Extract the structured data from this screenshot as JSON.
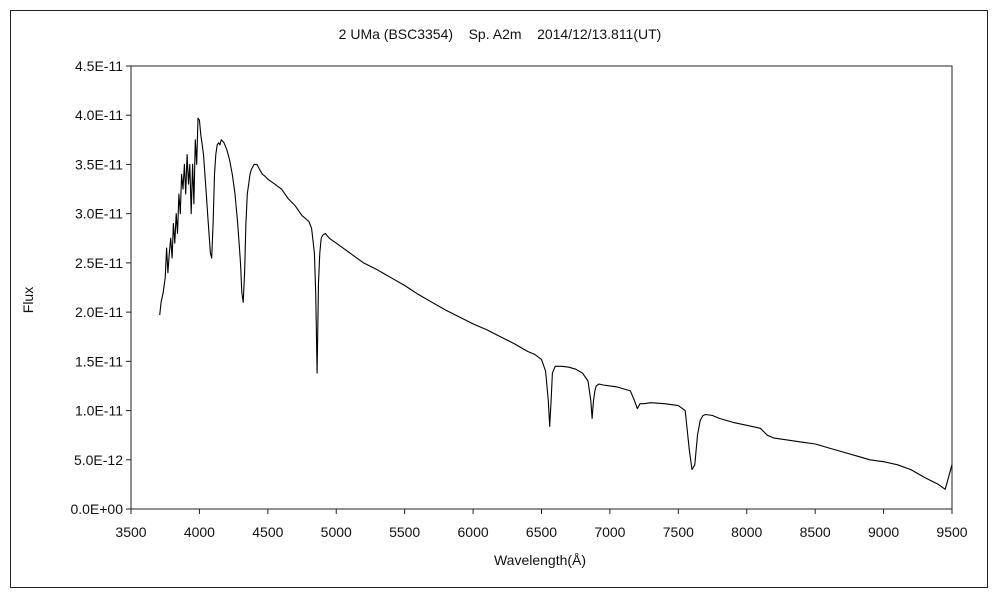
{
  "chart_data": {
    "type": "line",
    "title": "2 UMa (BSC3354)    Sp. A2m    2014/12/13.811(UT)",
    "xlabel": "Wavelength(Å)",
    "ylabel": "Flux",
    "xlim": [
      3500,
      9500
    ],
    "ylim": [
      0,
      4.5e-11
    ],
    "xticks": [
      3500,
      4000,
      4500,
      5000,
      5500,
      6000,
      6500,
      7000,
      7500,
      8000,
      8500,
      9000,
      9500
    ],
    "xtick_labels": [
      "3500",
      "4000",
      "4500",
      "5000",
      "5500",
      "6000",
      "6500",
      "7000",
      "7500",
      "8000",
      "8500",
      "9000",
      "9500"
    ],
    "yticks": [
      0,
      5e-12,
      1e-11,
      1.5e-11,
      2e-11,
      2.5e-11,
      3e-11,
      3.5e-11,
      4e-11,
      4.5e-11
    ],
    "ytick_labels": [
      "0.0E+00",
      "5.0E-12",
      "1.0E-11",
      "1.5E-11",
      "2.0E-11",
      "2.5E-11",
      "3.0E-11",
      "3.5E-11",
      "4.0E-11",
      "4.5E-11"
    ],
    "grid": false,
    "series": [
      {
        "x": [
          3710,
          3720,
          3735,
          3750,
          3760,
          3770,
          3780,
          3790,
          3800,
          3810,
          3820,
          3830,
          3840,
          3850,
          3860,
          3870,
          3880,
          3890,
          3900,
          3910,
          3920,
          3930,
          3940,
          3950,
          3960,
          3970,
          3980,
          3990,
          4000,
          4010,
          4020,
          4030,
          4040,
          4050,
          4060,
          4070,
          4080,
          4090,
          4100,
          4110,
          4120,
          4130,
          4140,
          4150,
          4160,
          4180,
          4200,
          4220,
          4240,
          4260,
          4280,
          4300,
          4310,
          4320,
          4330,
          4340,
          4350,
          4360,
          4370,
          4380,
          4400,
          4420,
          4440,
          4460,
          4480,
          4500,
          4550,
          4600,
          4650,
          4700,
          4750,
          4800,
          4820,
          4840,
          4850,
          4860,
          4870,
          4880,
          4890,
          4900,
          4920,
          4950,
          5000,
          5050,
          5100,
          5200,
          5300,
          5400,
          5500,
          5600,
          5700,
          5800,
          5900,
          6000,
          6100,
          6200,
          6300,
          6400,
          6450,
          6500,
          6530,
          6550,
          6560,
          6570,
          6580,
          6600,
          6650,
          6700,
          6750,
          6800,
          6840,
          6860,
          6870,
          6880,
          6890,
          6900,
          6920,
          6950,
          7000,
          7050,
          7100,
          7150,
          7180,
          7200,
          7220,
          7250,
          7300,
          7400,
          7500,
          7550,
          7580,
          7600,
          7620,
          7640,
          7660,
          7680,
          7700,
          7750,
          7800,
          7900,
          8000,
          8100,
          8150,
          8200,
          8300,
          8400,
          8500,
          8600,
          8700,
          8800,
          8900,
          9000,
          9100,
          9200,
          9300,
          9400,
          9450,
          9500
        ],
        "y": [
          1.97e-11,
          2.1e-11,
          2.2e-11,
          2.35e-11,
          2.65e-11,
          2.4e-11,
          2.6e-11,
          2.75e-11,
          2.55e-11,
          2.9e-11,
          2.7e-11,
          3e-11,
          2.8e-11,
          3.2e-11,
          3e-11,
          3.4e-11,
          3.25e-11,
          3.5e-11,
          3.2e-11,
          3.6e-11,
          3.3e-11,
          3.5e-11,
          3e-11,
          3.5e-11,
          3.1e-11,
          3.75e-11,
          3.5e-11,
          3.97e-11,
          3.95e-11,
          3.8e-11,
          3.7e-11,
          3.6e-11,
          3.4e-11,
          3.2e-11,
          3e-11,
          2.8e-11,
          2.6e-11,
          2.55e-11,
          2.9e-11,
          3.4e-11,
          3.6e-11,
          3.7e-11,
          3.72e-11,
          3.7e-11,
          3.75e-11,
          3.72e-11,
          3.65e-11,
          3.55e-11,
          3.4e-11,
          3.2e-11,
          2.9e-11,
          2.5e-11,
          2.2e-11,
          2.1e-11,
          2.4e-11,
          2.9e-11,
          3.2e-11,
          3.3e-11,
          3.4e-11,
          3.45e-11,
          3.5e-11,
          3.5e-11,
          3.45e-11,
          3.4e-11,
          3.38e-11,
          3.35e-11,
          3.3e-11,
          3.25e-11,
          3.15e-11,
          3.08e-11,
          2.98e-11,
          2.92e-11,
          2.85e-11,
          2.6e-11,
          2.2e-11,
          1.38e-11,
          2.3e-11,
          2.6e-11,
          2.75e-11,
          2.78e-11,
          2.8e-11,
          2.75e-11,
          2.7e-11,
          2.65e-11,
          2.6e-11,
          2.5e-11,
          2.43e-11,
          2.35e-11,
          2.27e-11,
          2.18e-11,
          2.1e-11,
          2.02e-11,
          1.95e-11,
          1.88e-11,
          1.82e-11,
          1.75e-11,
          1.68e-11,
          1.6e-11,
          1.57e-11,
          1.52e-11,
          1.4e-11,
          1.1e-11,
          8.4e-12,
          1.1e-11,
          1.38e-11,
          1.45e-11,
          1.45e-11,
          1.44e-11,
          1.42e-11,
          1.38e-11,
          1.3e-11,
          1.1e-11,
          9.2e-12,
          1.1e-11,
          1.2e-11,
          1.25e-11,
          1.27e-11,
          1.26e-11,
          1.25e-11,
          1.24e-11,
          1.22e-11,
          1.2e-11,
          1.1e-11,
          1.02e-11,
          1.07e-11,
          1.07e-11,
          1.08e-11,
          1.07e-11,
          1.05e-11,
          1e-11,
          6e-12,
          4e-12,
          4.5e-12,
          7.5e-12,
          9e-12,
          9.5e-12,
          9.6e-12,
          9.5e-12,
          9.2e-12,
          8.8e-12,
          8.5e-12,
          8.2e-12,
          7.5e-12,
          7.2e-12,
          7e-12,
          6.8e-12,
          6.6e-12,
          6.2e-12,
          5.8e-12,
          5.4e-12,
          5e-12,
          4.8e-12,
          4.5e-12,
          4e-12,
          3.2e-12,
          2.5e-12,
          2e-12,
          4.5e-12
        ]
      }
    ]
  }
}
